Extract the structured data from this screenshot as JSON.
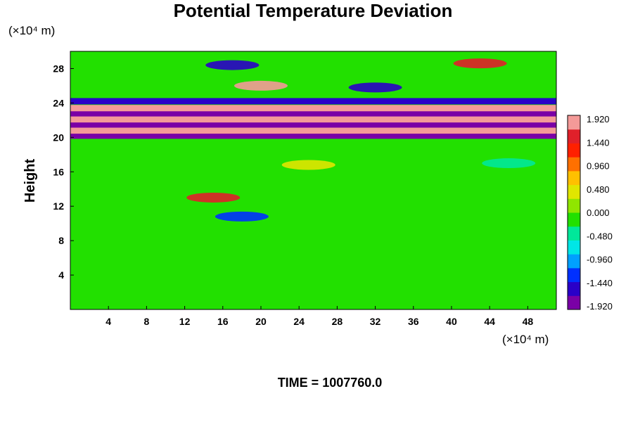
{
  "chart_data": {
    "type": "heatmap",
    "title": "Potential Temperature Deviation",
    "ylabel": "Height",
    "xlabel": "",
    "x_unit": "(×10⁴ m)",
    "y_unit": "(×10⁴ m)",
    "footer": "TIME = 1007760.0",
    "x_ticks": [
      "4",
      "8",
      "12",
      "16",
      "20",
      "24",
      "28",
      "32",
      "36",
      "40",
      "44",
      "48"
    ],
    "y_ticks": [
      "4",
      "8",
      "12",
      "16",
      "20",
      "24",
      "28"
    ],
    "xlim": [
      0,
      51
    ],
    "ylim": [
      0,
      30
    ],
    "grid": false,
    "colorbar": {
      "ticks": [
        "1.920",
        "1.440",
        "0.960",
        "0.480",
        "0.000",
        "-0.480",
        "-0.960",
        "-1.440",
        "-1.920"
      ],
      "range": [
        -1.92,
        1.92
      ],
      "colors": [
        "#7a00a6",
        "#2a00c8",
        "#0030ff",
        "#00a0ff",
        "#00e6e6",
        "#00e89a",
        "#22e000",
        "#90e600",
        "#e0e600",
        "#ffc000",
        "#ff7000",
        "#ff2000",
        "#e0202a",
        "#f49a98"
      ]
    },
    "bands": [
      {
        "y": 20.2,
        "value": -1.9
      },
      {
        "y": 20.8,
        "value": 1.9
      },
      {
        "y": 21.5,
        "value": -1.9
      },
      {
        "y": 22.1,
        "value": 1.9
      },
      {
        "y": 22.8,
        "value": -1.9
      },
      {
        "y": 23.4,
        "value": 1.9
      },
      {
        "y": 24.2,
        "value": -1.6
      }
    ],
    "features": [
      {
        "x": 20,
        "y": 26.0,
        "value": 1.7
      },
      {
        "x": 17,
        "y": 28.4,
        "value": -1.6
      },
      {
        "x": 43,
        "y": 28.6,
        "value": 1.5
      },
      {
        "x": 32,
        "y": 25.8,
        "value": -1.4
      },
      {
        "x": 15,
        "y": 13.0,
        "value": 1.6
      },
      {
        "x": 18,
        "y": 10.8,
        "value": -1.2
      },
      {
        "x": 25,
        "y": 16.8,
        "value": 0.4
      },
      {
        "x": 46,
        "y": 17.0,
        "value": -0.5
      }
    ]
  }
}
